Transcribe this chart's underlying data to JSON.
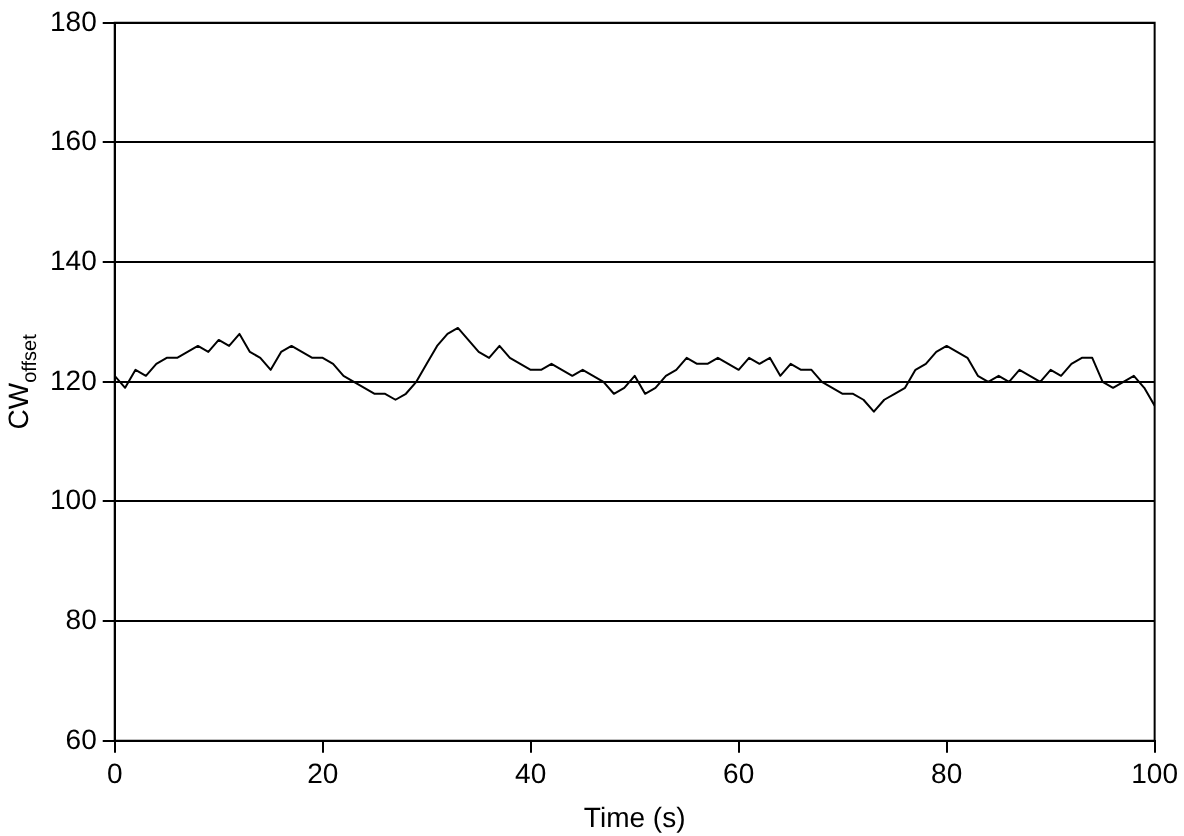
{
  "chart_data": {
    "type": "line",
    "xlabel": "Time (s)",
    "ylabel": "CW$_{offset}$",
    "x": [
      0,
      1,
      2,
      3,
      4,
      5,
      6,
      7,
      8,
      9,
      10,
      11,
      12,
      13,
      14,
      15,
      16,
      17,
      18,
      19,
      20,
      21,
      22,
      23,
      24,
      25,
      26,
      27,
      28,
      29,
      30,
      31,
      32,
      33,
      34,
      35,
      36,
      37,
      38,
      39,
      40,
      41,
      42,
      43,
      44,
      45,
      46,
      47,
      48,
      49,
      50,
      51,
      52,
      53,
      54,
      55,
      56,
      57,
      58,
      59,
      60,
      61,
      62,
      63,
      64,
      65,
      66,
      67,
      68,
      69,
      70,
      71,
      72,
      73,
      74,
      75,
      76,
      77,
      78,
      79,
      80,
      81,
      82,
      83,
      84,
      85,
      86,
      87,
      88,
      89,
      90,
      91,
      92,
      93,
      94,
      95,
      96,
      97,
      98,
      99,
      100
    ],
    "series": [
      {
        "color": "#000000",
        "values": [
          121,
          119,
          122,
          121,
          123,
          124,
          124,
          125,
          126,
          125,
          127,
          126,
          128,
          125,
          124,
          122,
          125,
          126,
          125,
          124,
          124,
          123,
          121,
          120,
          119,
          118,
          118,
          117,
          118,
          120,
          123,
          126,
          128,
          129,
          127,
          125,
          124,
          126,
          124,
          123,
          122,
          122,
          123,
          122,
          121,
          122,
          121,
          120,
          118,
          119,
          121,
          118,
          119,
          121,
          122,
          124,
          123,
          123,
          124,
          123,
          122,
          124,
          123,
          124,
          121,
          123,
          122,
          122,
          120,
          119,
          118,
          118,
          117,
          115,
          117,
          118,
          119,
          122,
          123,
          125,
          126,
          125,
          124,
          121,
          120,
          121,
          120,
          122,
          121,
          120,
          122,
          121,
          123,
          124,
          124,
          120,
          119,
          120,
          121,
          119,
          116
        ]
      }
    ],
    "xlim": [
      0,
      100
    ],
    "xticks": [
      0,
      20,
      40,
      60,
      80,
      100
    ],
    "ylim": [
      60,
      180
    ],
    "yticks": [
      60,
      80,
      100,
      120,
      140,
      160,
      180
    ],
    "grid": "y",
    "marker": "none",
    "line_style": "solid",
    "legend": false
  }
}
